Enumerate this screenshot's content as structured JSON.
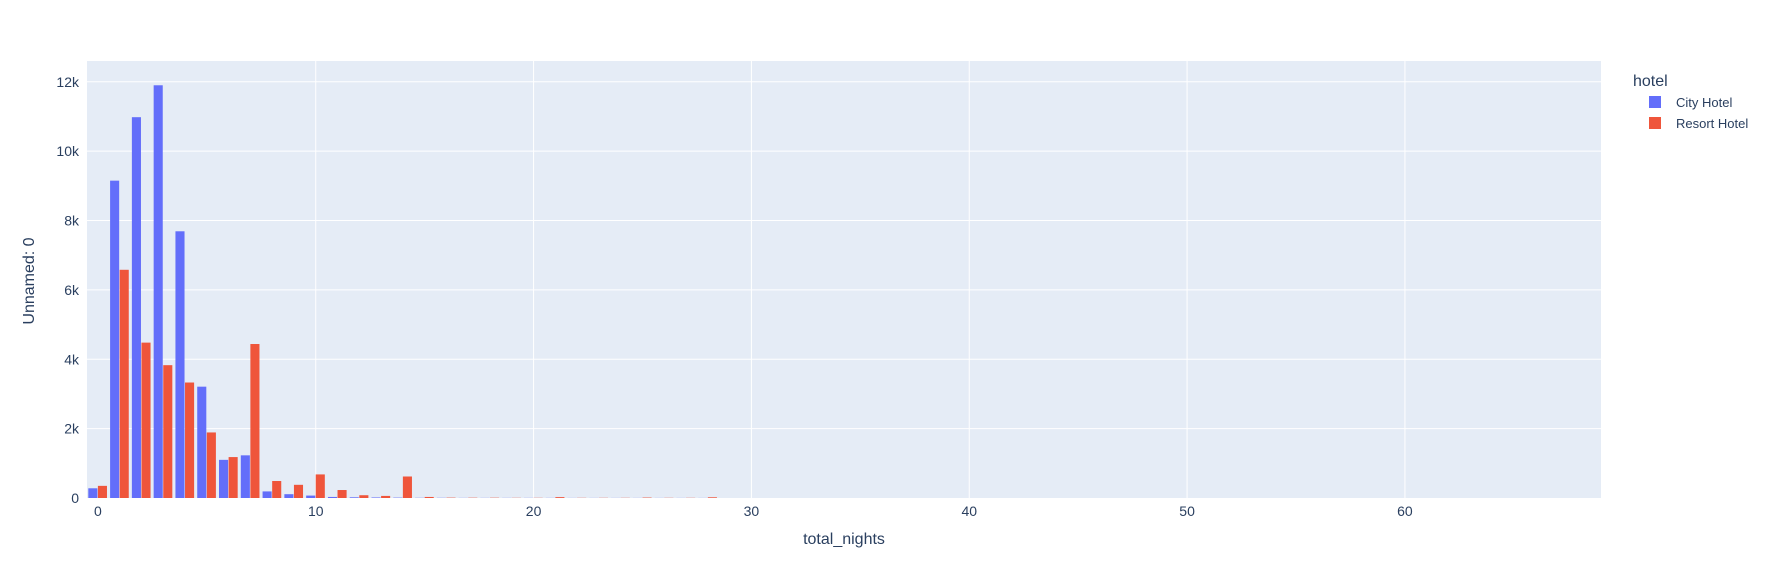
{
  "chart_data": {
    "type": "bar",
    "barmode": "group",
    "xlabel": "total_nights",
    "ylabel": "Unnamed: 0",
    "xlim": [
      -0.5,
      69
    ],
    "ylim": [
      0,
      12600
    ],
    "x_ticks": [
      0,
      10,
      20,
      30,
      40,
      50,
      60
    ],
    "x_tick_labels": [
      "0",
      "10",
      "20",
      "30",
      "40",
      "50",
      "60"
    ],
    "y_ticks": [
      0,
      2000,
      4000,
      6000,
      8000,
      10000,
      12000
    ],
    "y_tick_labels": [
      "0",
      "2k",
      "4k",
      "6k",
      "8k",
      "10k",
      "12k"
    ],
    "grid": true,
    "legend": {
      "title": "hotel",
      "placement": "top-right outside"
    },
    "x": [
      0,
      1,
      2,
      3,
      4,
      5,
      6,
      7,
      8,
      9,
      10,
      11,
      12,
      13,
      14,
      15,
      16,
      17,
      18,
      19,
      20,
      21,
      22,
      23,
      24,
      25,
      26,
      27,
      28
    ],
    "series": [
      {
        "name": "City Hotel",
        "color": "#636efa",
        "values": [
          280,
          9150,
          10980,
          11900,
          7690,
          3210,
          1100,
          1230,
          190,
          110,
          70,
          30,
          20,
          15,
          10,
          5,
          5,
          3,
          3,
          3,
          3,
          3,
          2,
          2,
          2,
          2,
          2,
          2,
          2
        ]
      },
      {
        "name": "Resort Hotel",
        "color": "#ef553b",
        "values": [
          350,
          6580,
          4480,
          3830,
          3330,
          1890,
          1180,
          4440,
          490,
          380,
          680,
          230,
          80,
          60,
          620,
          30,
          10,
          8,
          8,
          5,
          5,
          25,
          5,
          5,
          5,
          12,
          5,
          5,
          20
        ]
      }
    ]
  }
}
